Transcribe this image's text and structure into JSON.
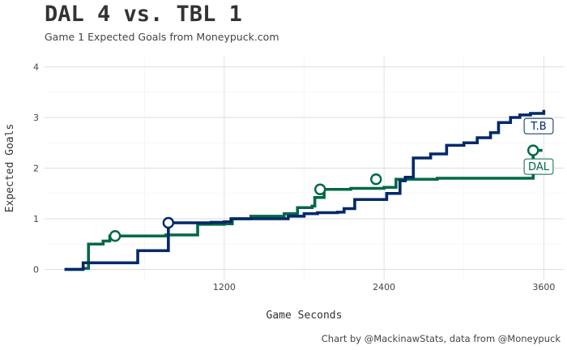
{
  "title": "DAL 4 vs. TBL 1",
  "subtitle": "Game 1 Expected Goals from Moneypuck.com",
  "caption": "Chart by @MackinawStats, data from @Moneypuck",
  "chart_data": {
    "type": "line",
    "title": "DAL 4 vs. TBL 1",
    "subtitle": "Game 1 Expected Goals from Moneypuck.com",
    "xlabel": "Game Seconds",
    "ylabel": "Expected Goals",
    "xlim": [
      -150,
      3750
    ],
    "ylim": [
      -0.2,
      4.2
    ],
    "x_ticks": [
      1200,
      2400,
      3600
    ],
    "y_ticks": [
      0,
      1,
      2,
      3,
      4
    ],
    "grid": true,
    "series": [
      {
        "name": "DAL",
        "end_label": "DAL",
        "color": "#006847",
        "points": [
          [
            0,
            0
          ],
          [
            140,
            0
          ],
          [
            140,
            0.02
          ],
          [
            180,
            0.02
          ],
          [
            180,
            0.5
          ],
          [
            290,
            0.56
          ],
          [
            340,
            0.66
          ],
          [
            480,
            0.66
          ],
          [
            760,
            0.68
          ],
          [
            900,
            0.68
          ],
          [
            1000,
            0.89
          ],
          [
            1200,
            0.9
          ],
          [
            1260,
            1.0
          ],
          [
            1400,
            1.05
          ],
          [
            1600,
            1.05
          ],
          [
            1650,
            1.1
          ],
          [
            1750,
            1.22
          ],
          [
            1860,
            1.25
          ],
          [
            1880,
            1.42
          ],
          [
            1950,
            1.58
          ],
          [
            2080,
            1.58
          ],
          [
            2150,
            1.6
          ],
          [
            2380,
            1.6
          ],
          [
            2400,
            1.62
          ],
          [
            2490,
            1.78
          ],
          [
            2600,
            1.78
          ],
          [
            2800,
            1.8
          ],
          [
            3300,
            1.8
          ],
          [
            3520,
            1.8
          ],
          [
            3520,
            2.35
          ],
          [
            3590,
            2.35
          ]
        ],
        "goals": [
          [
            380,
            0.66
          ],
          [
            1920,
            1.58
          ],
          [
            2340,
            1.78
          ],
          [
            3520,
            2.35
          ]
        ]
      },
      {
        "name": "T.B",
        "end_label": "T.B",
        "color": "#002868",
        "points": [
          [
            0,
            0
          ],
          [
            140,
            0
          ],
          [
            140,
            0.13
          ],
          [
            500,
            0.13
          ],
          [
            550,
            0.37
          ],
          [
            730,
            0.37
          ],
          [
            780,
            0.92
          ],
          [
            1000,
            0.92
          ],
          [
            1100,
            0.93
          ],
          [
            1200,
            0.94
          ],
          [
            1250,
            1.0
          ],
          [
            1500,
            1.0
          ],
          [
            1680,
            1.05
          ],
          [
            1720,
            1.05
          ],
          [
            1800,
            1.1
          ],
          [
            1900,
            1.12
          ],
          [
            2050,
            1.13
          ],
          [
            2100,
            1.2
          ],
          [
            2180,
            1.38
          ],
          [
            2400,
            1.38
          ],
          [
            2420,
            1.5
          ],
          [
            2520,
            1.75
          ],
          [
            2560,
            1.82
          ],
          [
            2620,
            2.2
          ],
          [
            2750,
            2.28
          ],
          [
            2870,
            2.45
          ],
          [
            3000,
            2.5
          ],
          [
            3100,
            2.6
          ],
          [
            3200,
            2.7
          ],
          [
            3260,
            2.9
          ],
          [
            3350,
            3.0
          ],
          [
            3420,
            3.05
          ],
          [
            3500,
            3.08
          ],
          [
            3600,
            3.15
          ]
        ],
        "goals": [
          [
            780,
            0.92
          ]
        ]
      }
    ]
  }
}
